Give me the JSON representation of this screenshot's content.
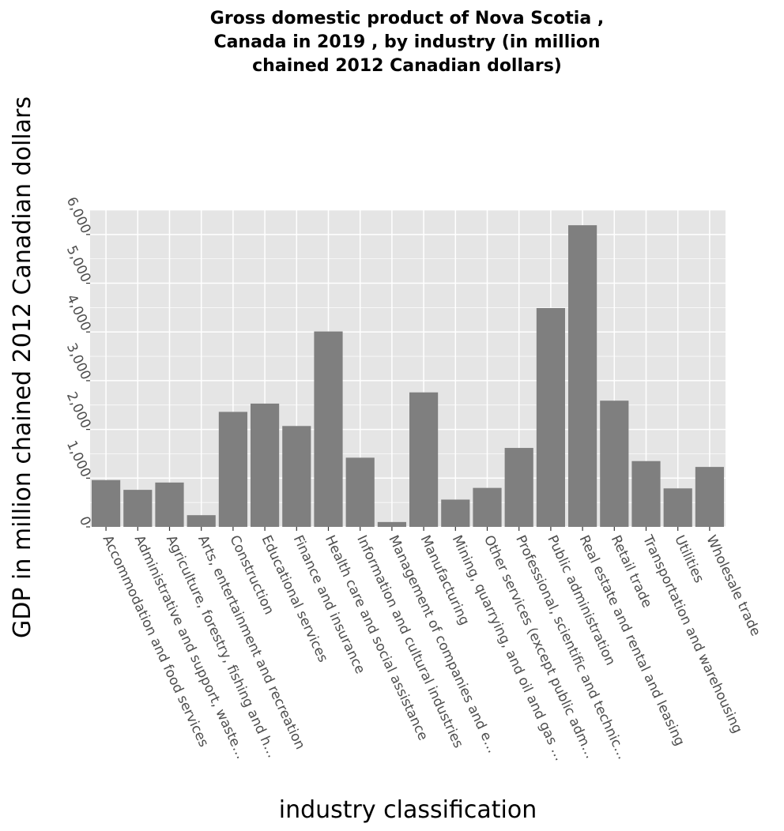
{
  "chart_data": {
    "type": "bar",
    "title_lines": [
      "Gross domestic product of Nova Scotia ,",
      "Canada in 2019 , by industry (in million",
      "chained 2012 Canadian dollars)"
    ],
    "xlabel": "industry classification",
    "ylabel": "GDP in million chained 2012 Canadian dollars",
    "categories": [
      "Accommodation and food services",
      "Administrative and support, waste…",
      "Agriculture, forestry, fishing and h…",
      "Arts, entertainment and recreation",
      "Construction",
      "Educational services",
      "Finance and insurance",
      "Health care and social assistance",
      "Information and cultural industries",
      "Management of companies and e…",
      "Manufacturing",
      "Mining, quarrying, and oil and gas …",
      "Other services (except public adm…",
      "Professional, scientific and technic…",
      "Public administration",
      "Real estate and rental and leasing",
      "Retail trade",
      "Transportation and warehousing",
      "Utilities",
      "Wholesale trade"
    ],
    "values": [
      960,
      760,
      910,
      240,
      2360,
      2530,
      2070,
      4010,
      1420,
      100,
      2760,
      560,
      800,
      1620,
      4490,
      6190,
      2590,
      1350,
      790,
      1230
    ],
    "y_ticks": [
      "0",
      "1,000",
      "2,000",
      "3,000",
      "4,000",
      "5,000",
      "6,000"
    ],
    "y_tick_values": [
      0,
      1000,
      2000,
      3000,
      4000,
      5000,
      6000
    ],
    "ylim": [
      0,
      6500
    ],
    "grid": true,
    "colors": {
      "bar": "#7f7f7f",
      "panel": "#e5e5e5",
      "grid": "#ffffff",
      "tick_text": "#4d4d4d"
    }
  }
}
